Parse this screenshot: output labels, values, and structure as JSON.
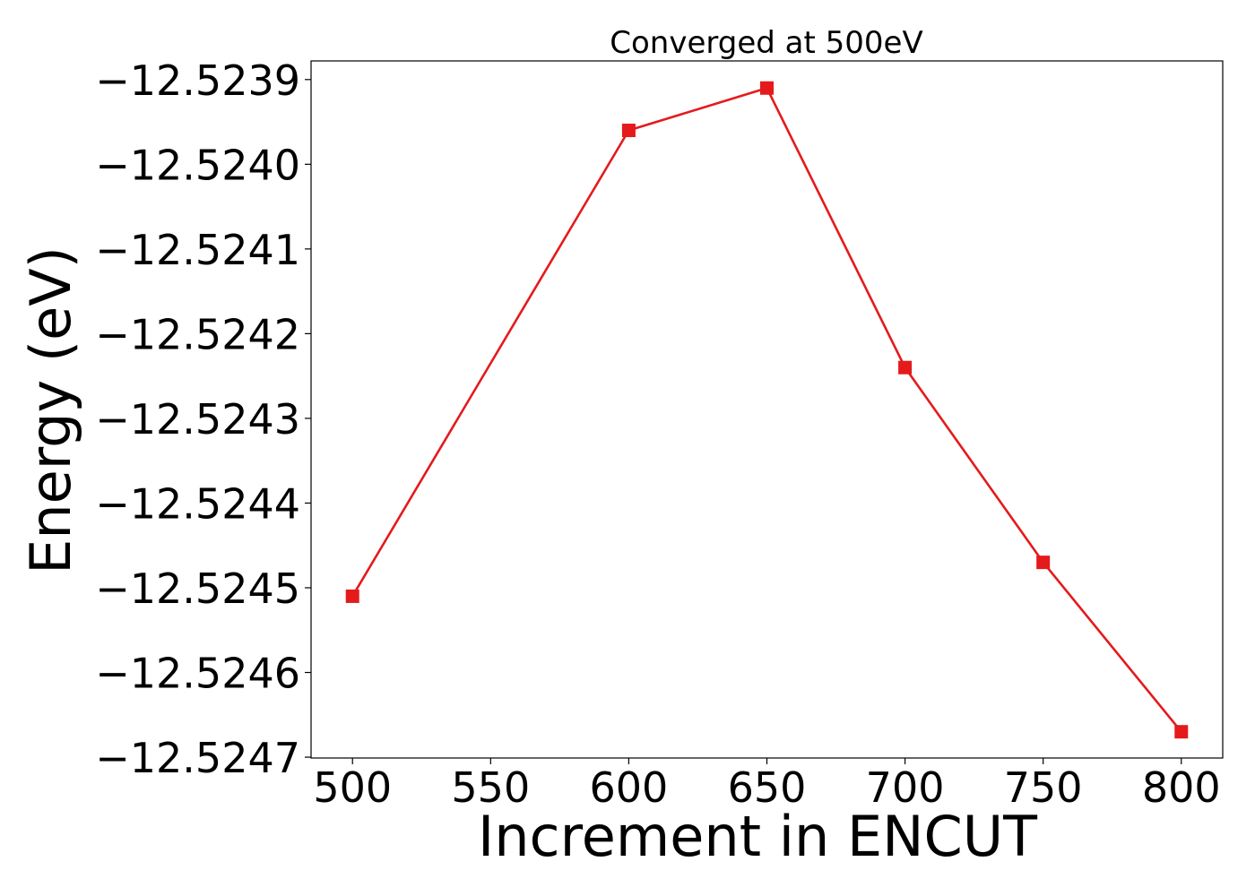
{
  "chart_data": {
    "type": "line",
    "title": "Converged at 500eV",
    "xlabel": "Increment in ENCUT",
    "ylabel": "Energy (eV)",
    "x": [
      500,
      600,
      650,
      700,
      750,
      800
    ],
    "series": [
      {
        "values": [
          -12.52451,
          -12.52396,
          -12.52391,
          -12.52424,
          -12.52447,
          -12.52467
        ],
        "color": "#e41a1c",
        "marker": "square"
      }
    ],
    "xticks": [
      500,
      550,
      600,
      650,
      700,
      750,
      800
    ],
    "xtick_labels": [
      "500",
      "550",
      "600",
      "650",
      "700",
      "750",
      "800"
    ],
    "yticks": [
      -12.5239,
      -12.524,
      -12.5241,
      -12.5242,
      -12.5243,
      -12.5244,
      -12.5245,
      -12.5246,
      -12.5247
    ],
    "ytick_labels": [
      "−12.5239",
      "−12.5240",
      "−12.5241",
      "−12.5242",
      "−12.5243",
      "−12.5244",
      "−12.5245",
      "−12.5246",
      "−12.5247"
    ],
    "xlim": [
      485,
      815
    ],
    "ylim": [
      -12.524701,
      -12.523878
    ],
    "grid": false,
    "legend": "none"
  }
}
